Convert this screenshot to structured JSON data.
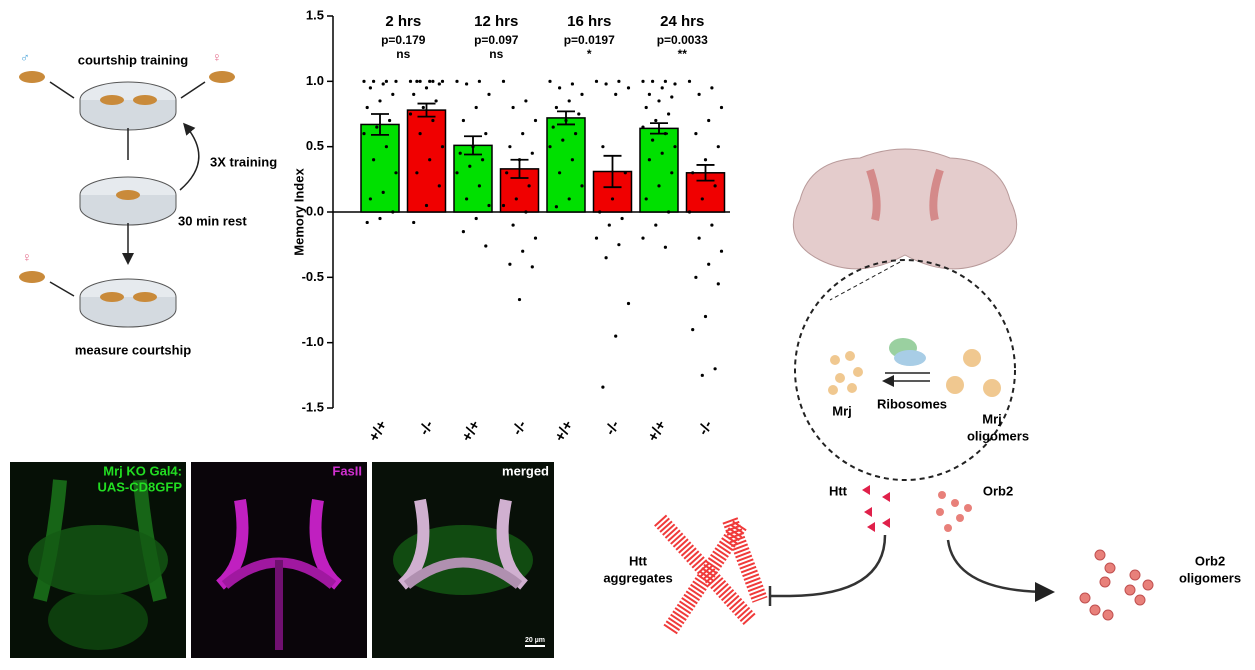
{
  "chart_data": {
    "type": "bar",
    "ylabel": "Memory Index",
    "categories": [
      "+/+",
      "-/-",
      "+/+",
      "-/-",
      "+/+",
      "-/-",
      "+/+",
      "-/-"
    ],
    "values": [
      0.67,
      0.78,
      0.51,
      0.33,
      0.72,
      0.31,
      0.64,
      0.3
    ],
    "errors": [
      0.08,
      0.05,
      0.07,
      0.07,
      0.05,
      0.12,
      0.04,
      0.06
    ],
    "colors": [
      "#00e000",
      "#f00000",
      "#00e000",
      "#f00000",
      "#00e000",
      "#f00000",
      "#00e000",
      "#f00000"
    ],
    "points": [
      [
        1,
        1,
        1,
        1,
        0.98,
        0.95,
        0.9,
        0.85,
        0.8,
        0.7,
        0.65,
        0.6,
        0.5,
        0.4,
        0.3,
        0.15,
        0.1,
        0,
        -0.05,
        -0.08
      ],
      [
        1,
        1,
        1,
        1,
        1,
        1,
        0.98,
        0.95,
        0.9,
        0.85,
        0.8,
        0.75,
        0.7,
        0.6,
        0.5,
        0.4,
        0.3,
        0.2,
        0.05,
        -0.08
      ],
      [
        1,
        1,
        0.98,
        0.9,
        0.8,
        0.7,
        0.6,
        0.5,
        0.45,
        0.4,
        0.35,
        0.3,
        0.2,
        0.1,
        0.05,
        -0.05,
        -0.15,
        -0.26
      ],
      [
        1,
        0.85,
        0.8,
        0.7,
        0.6,
        0.5,
        0.45,
        0.4,
        0.3,
        0.2,
        0.1,
        0.05,
        0,
        -0.1,
        -0.2,
        -0.3,
        -0.4,
        -0.42,
        -0.67
      ],
      [
        1,
        0.98,
        0.95,
        0.9,
        0.85,
        0.8,
        0.75,
        0.7,
        0.65,
        0.6,
        0.55,
        0.5,
        0.4,
        0.3,
        0.2,
        0.1,
        0.04
      ],
      [
        1,
        1,
        0.98,
        0.95,
        0.9,
        0.5,
        0.3,
        0.1,
        0,
        -0.05,
        -0.1,
        -0.2,
        -0.25,
        -0.35,
        -0.7,
        -0.95,
        -1.34
      ],
      [
        1,
        1,
        1,
        0.98,
        0.95,
        0.9,
        0.88,
        0.85,
        0.8,
        0.75,
        0.7,
        0.65,
        0.6,
        0.55,
        0.5,
        0.45,
        0.4,
        0.3,
        0.2,
        0.1,
        0,
        -0.1,
        -0.2,
        -0.27
      ],
      [
        1,
        0.95,
        0.9,
        0.8,
        0.7,
        0.6,
        0.5,
        0.4,
        0.3,
        0.2,
        0.1,
        0,
        -0.1,
        -0.2,
        -0.3,
        -0.4,
        -0.5,
        -0.55,
        -0.8,
        -0.9,
        -1.2,
        -1.25
      ]
    ],
    "groups": [
      {
        "label": "2 hrs",
        "p": "p=0.179",
        "sig": "ns"
      },
      {
        "label": "12 hrs",
        "p": "p=0.097",
        "sig": "ns"
      },
      {
        "label": "16 hrs",
        "p": "p=0.0197",
        "sig": "*"
      },
      {
        "label": "24 hrs",
        "p": "p=0.0033",
        "sig": "**"
      }
    ],
    "ylim": [
      -1.5,
      1.5
    ],
    "yticks": [
      -1.5,
      {
        "value": -1,
        "label": "-1.0"
      },
      -0.5,
      {
        "value": 0,
        "label": "0.0"
      },
      0.5,
      {
        "value": 1,
        "label": "1.0"
      },
      1.5
    ]
  },
  "protocol": {
    "training": "courtship training",
    "repeat": "3X training",
    "rest": "30 min rest",
    "measure": "measure courtship"
  },
  "images": {
    "gfp": [
      "Mrj KO Gal4:",
      "UAS-CD8GFP"
    ],
    "fasii": "FasII",
    "merged": "merged",
    "scale": "20 µm"
  },
  "model": {
    "mrj": "Mrj",
    "ribosomes": "Ribosomes",
    "oligomers": [
      "Mrj",
      "oligomers"
    ],
    "htt": "Htt",
    "orb2": "Orb2",
    "htt_agg": [
      "Htt",
      "aggregates"
    ],
    "orb2_olig": [
      "Orb2",
      "oligomers"
    ]
  }
}
